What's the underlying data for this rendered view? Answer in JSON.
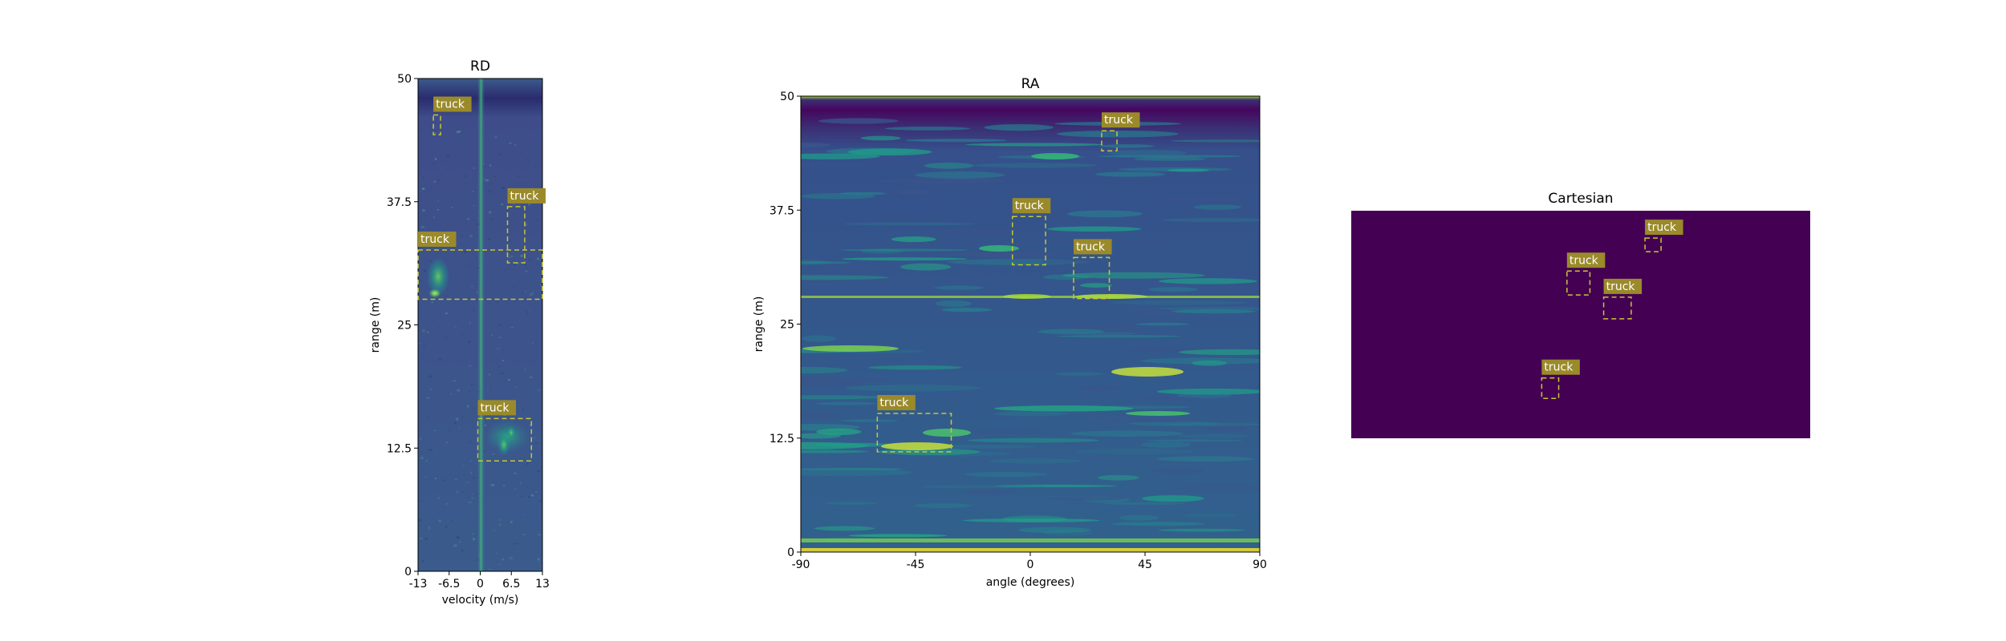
{
  "chart_data": [
    {
      "type": "heatmap",
      "title": "RD",
      "xlabel": "velocity (m/s)",
      "ylabel": "range (m)",
      "xlim": [
        -13,
        13
      ],
      "ylim": [
        0,
        50
      ],
      "x_ticks": [
        -13,
        -6.5,
        0,
        6.5,
        13
      ],
      "x_tick_labels": [
        "-13",
        "-6.5",
        "0",
        "6.5",
        "13"
      ],
      "y_ticks": [
        0,
        12.5,
        25,
        37.5,
        50
      ],
      "y_tick_labels": [
        "0",
        "12.5",
        "25",
        "37.5",
        "50"
      ],
      "colormap": "viridis",
      "annotations": [
        {
          "label": "truck",
          "x0": -9.8,
          "x1": -8.3,
          "y0": 44.3,
          "y1": 46.3
        },
        {
          "label": "truck",
          "x0": 5.7,
          "x1": 9.3,
          "y0": 31.3,
          "y1": 37.0
        },
        {
          "label": "truck",
          "x0": -13,
          "x1": 13,
          "y0": 27.6,
          "y1": 32.6
        },
        {
          "label": "truck",
          "x0": -0.5,
          "x1": 10.7,
          "y0": 11.2,
          "y1": 15.5
        }
      ]
    },
    {
      "type": "heatmap",
      "title": "RA",
      "xlabel": "angle (degrees)",
      "ylabel": "range (m)",
      "xlim": [
        -90,
        90
      ],
      "ylim": [
        0,
        50
      ],
      "x_ticks": [
        -90,
        -45,
        0,
        45,
        90
      ],
      "x_tick_labels": [
        "-90",
        "-45",
        "0",
        "45",
        "90"
      ],
      "y_ticks": [
        0,
        12.5,
        25,
        37.5,
        50
      ],
      "y_tick_labels": [
        "0",
        "12.5",
        "25",
        "37.5",
        "50"
      ],
      "colormap": "viridis",
      "annotations": [
        {
          "label": "truck",
          "x0": 28,
          "x1": 34,
          "y0": 44.0,
          "y1": 46.2
        },
        {
          "label": "truck",
          "x0": -7,
          "x1": 6,
          "y0": 31.5,
          "y1": 36.8
        },
        {
          "label": "truck",
          "x0": 17,
          "x1": 31,
          "y0": 27.8,
          "y1": 32.3
        },
        {
          "label": "truck",
          "x0": -60,
          "x1": -31,
          "y0": 11.0,
          "y1": 15.2
        }
      ]
    },
    {
      "type": "heatmap",
      "title": "Cartesian",
      "colormap": "viridis",
      "background_color": "#440154",
      "annotations": [
        {
          "label": "truck",
          "fx0": 0.64,
          "fx1": 0.675,
          "fy0": 0.12,
          "fy1": 0.18
        },
        {
          "label": "truck",
          "fx0": 0.47,
          "fx1": 0.52,
          "fy0": 0.265,
          "fy1": 0.37
        },
        {
          "label": "truck",
          "fx0": 0.55,
          "fx1": 0.61,
          "fy0": 0.38,
          "fy1": 0.475
        },
        {
          "label": "truck",
          "fx0": 0.415,
          "fx1": 0.452,
          "fy0": 0.735,
          "fy1": 0.825
        }
      ]
    }
  ],
  "colors": {
    "box": "#c8c832",
    "label_bg": "#9a8a2a",
    "viridis_low": "#440154",
    "viridis_mid": "#3b528b",
    "viridis_high": "#fde725"
  }
}
